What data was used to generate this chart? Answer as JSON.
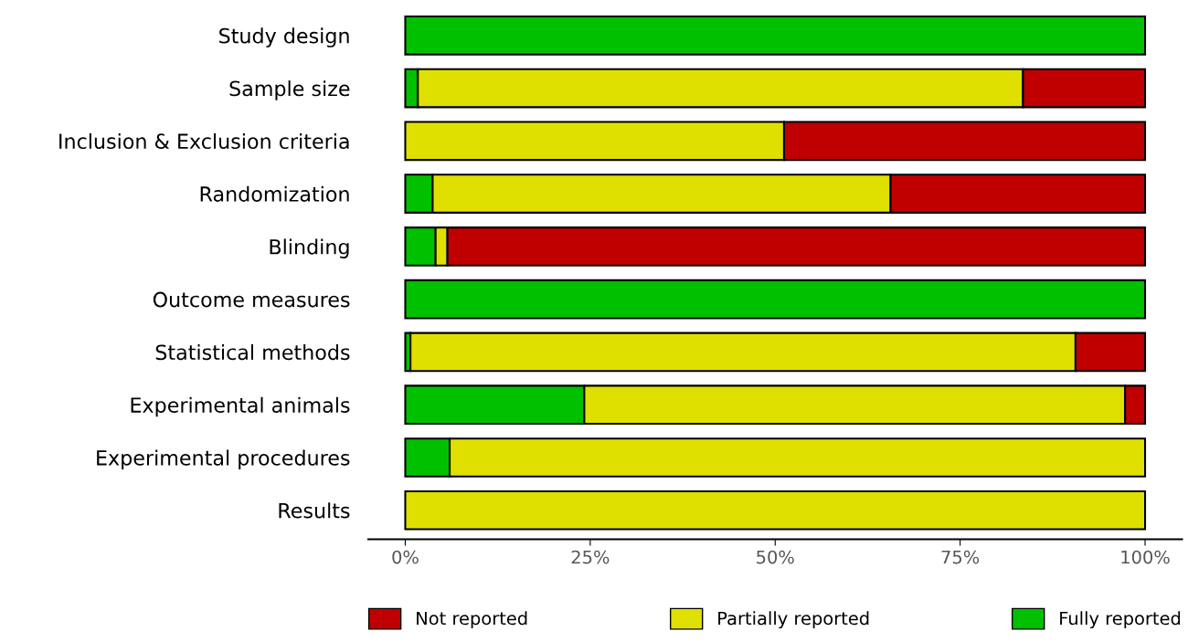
{
  "chart_data": {
    "type": "bar",
    "orientation": "horizontal",
    "stacked": true,
    "categories": [
      "Study design",
      "Sample size",
      "Inclusion & Exclusion criteria",
      "Randomization",
      "Blinding",
      "Outcome measures",
      "Statistical methods",
      "Experimental animals",
      "Experimental procedures",
      "Results"
    ],
    "series": [
      {
        "name": "Fully reported",
        "color": "#00c000",
        "values": [
          100,
          1.7,
          0,
          3.7,
          4.1,
          100,
          0.7,
          24.2,
          6.0,
          0
        ]
      },
      {
        "name": "Partially reported",
        "color": "#e0e000",
        "values": [
          0,
          81.8,
          51.2,
          61.9,
          1.6,
          0,
          89.9,
          73.1,
          94.0,
          100
        ]
      },
      {
        "name": "Not reported",
        "color": "#c00000",
        "values": [
          0,
          16.5,
          48.8,
          34.4,
          94.3,
          0,
          9.4,
          2.7,
          0,
          0
        ]
      }
    ],
    "xlim": [
      -5,
      105
    ],
    "xticks": [
      {
        "value": 0,
        "label": "0%"
      },
      {
        "value": 25,
        "label": "25%"
      },
      {
        "value": 50,
        "label": "50%"
      },
      {
        "value": 75,
        "label": "75%"
      },
      {
        "value": 100,
        "label": "100%"
      }
    ],
    "grid": false,
    "legend": "bottom"
  }
}
